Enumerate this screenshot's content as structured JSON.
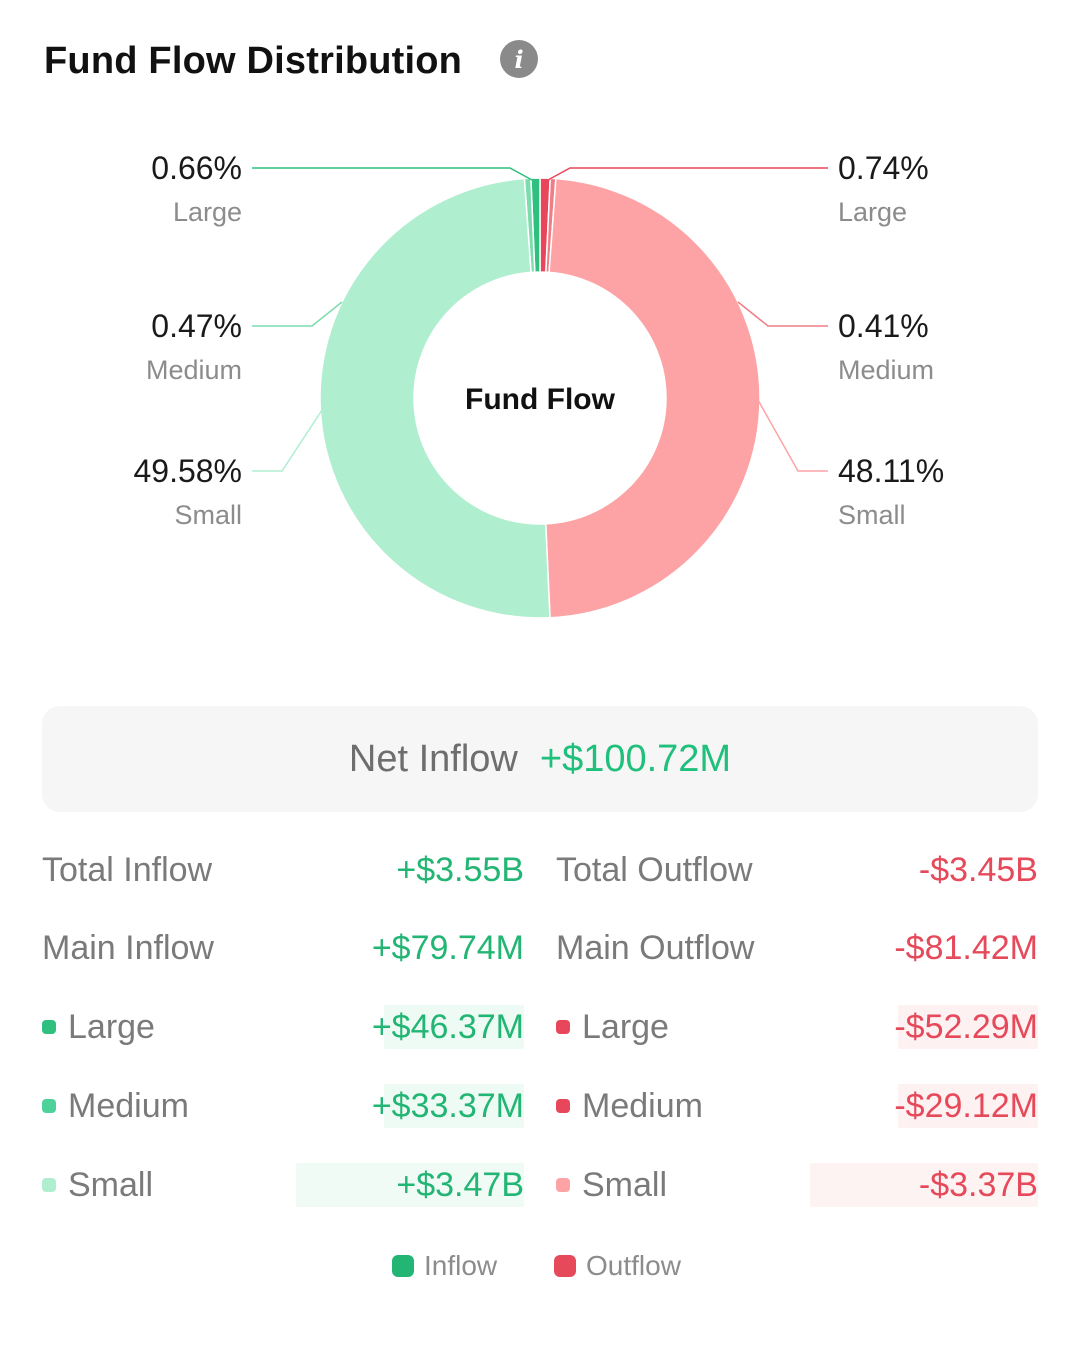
{
  "header": {
    "title": "Fund Flow Distribution",
    "info_icon": "info-icon"
  },
  "chart_data": {
    "type": "pie",
    "center_label": "Fund Flow",
    "slices": [
      {
        "label": "Large",
        "percent": 0.66,
        "side": "inflow",
        "color": "#2fbf7e"
      },
      {
        "label": "Medium",
        "percent": 0.47,
        "side": "inflow",
        "color": "#7ddcae"
      },
      {
        "label": "Small",
        "percent": 49.58,
        "side": "inflow",
        "color": "#b0eed0"
      },
      {
        "label": "Small",
        "percent": 48.11,
        "side": "outflow",
        "color": "#fda3a6"
      },
      {
        "label": "Medium",
        "percent": 0.41,
        "side": "outflow",
        "color": "#ef7d86"
      },
      {
        "label": "Large",
        "percent": 0.74,
        "side": "outflow",
        "color": "#e8465a"
      }
    ],
    "labels": {
      "in_large": {
        "pct": "0.66%",
        "name": "Large"
      },
      "in_medium": {
        "pct": "0.47%",
        "name": "Medium"
      },
      "in_small": {
        "pct": "49.58%",
        "name": "Small"
      },
      "out_large": {
        "pct": "0.74%",
        "name": "Large"
      },
      "out_medium": {
        "pct": "0.41%",
        "name": "Medium"
      },
      "out_small": {
        "pct": "48.11%",
        "name": "Small"
      }
    }
  },
  "net": {
    "label": "Net Inflow",
    "value": "+$100.72M"
  },
  "inflow": {
    "total": {
      "label": "Total Inflow",
      "value": "+$3.55B"
    },
    "main": {
      "label": "Main Inflow",
      "value": "+$79.74M"
    },
    "large": {
      "label": "Large",
      "value": "+$46.37M",
      "share": 0.013
    },
    "medium": {
      "label": "Medium",
      "value": "+$33.37M",
      "share": 0.0094
    },
    "small": {
      "label": "Small",
      "value": "+$3.47B",
      "share": 1.0
    }
  },
  "outflow": {
    "total": {
      "label": "Total Outflow",
      "value": "-$3.45B"
    },
    "main": {
      "label": "Main Outflow",
      "value": "-$81.42M"
    },
    "large": {
      "label": "Large",
      "value": "-$52.29M",
      "share": 0.0155
    },
    "medium": {
      "label": "Medium",
      "value": "-$29.12M",
      "share": 0.0086
    },
    "small": {
      "label": "Small",
      "value": "-$3.37B",
      "share": 1.0
    }
  },
  "legend": {
    "inflow": "Inflow",
    "outflow": "Outflow"
  },
  "colors": {
    "inflow": "#22b574",
    "outflow": "#e6495a",
    "in_large": "#2fbf7e",
    "in_medium": "#4fd19a",
    "in_small": "#b0eed0",
    "out_large": "#e8465a",
    "out_medium": "#e8465a",
    "out_small": "#fda3a6"
  }
}
